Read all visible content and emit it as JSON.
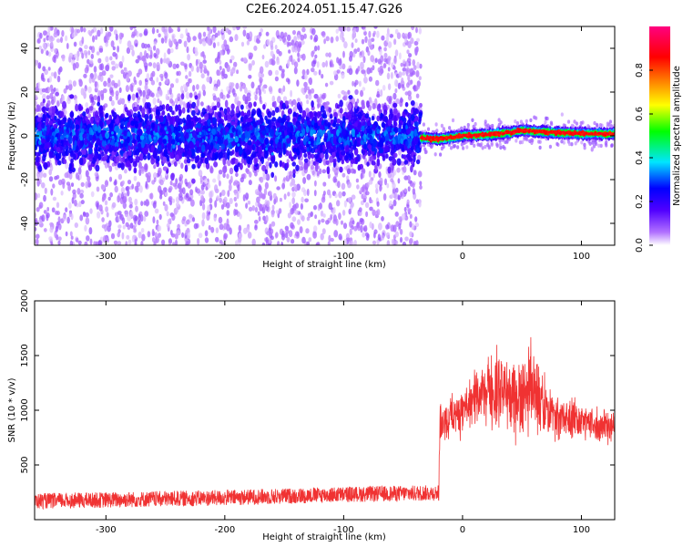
{
  "title": "C2E6.2024.051.15.47.G26",
  "chart_data": [
    {
      "type": "heatmap",
      "xlabel": "Height of straight line (km)",
      "ylabel": "Frequency (Hz)",
      "xlim": [
        -360,
        128
      ],
      "ylim": [
        -50,
        50
      ],
      "xticks": [
        -300,
        -200,
        -100,
        0,
        100
      ],
      "yticks": [
        -40,
        -20,
        0,
        20,
        40
      ],
      "colorbar": {
        "label": "Normalized spectral amplitude",
        "range": [
          0.0,
          1.0
        ],
        "ticks": [
          0.0,
          0.2,
          0.4,
          0.6,
          0.8
        ],
        "tick_labels": [
          "0.0",
          "0.2",
          "0.4",
          "0.6",
          "0.8"
        ],
        "colormap": [
          "#ffffff",
          "#7a00ff",
          "#0000ff",
          "#00e5ff",
          "#00ff00",
          "#ffff00",
          "#ff8000",
          "#ff0000",
          "#ff0080"
        ]
      },
      "regions": [
        {
          "x_range": [
            -360,
            -35
          ],
          "description_level": "broad noise",
          "core_band_hz": [
            -10,
            10
          ],
          "spread_hz": [
            -50,
            50
          ],
          "max_amplitude": 0.35
        },
        {
          "x_range": [
            -35,
            128
          ],
          "description_level": "signal line",
          "band_hz": [
            -3,
            3
          ],
          "max_amplitude": 0.95
        }
      ],
      "signal_track": {
        "x": [
          -35,
          -20,
          0,
          20,
          40,
          50,
          60,
          80,
          100,
          128
        ],
        "frequency": [
          -1,
          -1.5,
          0,
          0.5,
          1.5,
          2.5,
          2,
          1.5,
          1,
          1
        ]
      }
    },
    {
      "type": "line",
      "xlabel": "Height of straight line (km)",
      "ylabel": "SNR (10 * v/v)",
      "xlim": [
        -360,
        128
      ],
      "ylim": [
        0,
        2000
      ],
      "xticks": [
        -300,
        -200,
        -100,
        0,
        100
      ],
      "yticks": [
        500,
        1000,
        1500,
        2000
      ],
      "color": "#f03232",
      "series": [
        {
          "x": [
            -360,
            -300,
            -250,
            -200,
            -150,
            -100,
            -50,
            -20,
            -19,
            0,
            20,
            30,
            40,
            50,
            60,
            70,
            80,
            100,
            128
          ],
          "y": [
            170,
            180,
            190,
            200,
            215,
            230,
            240,
            245,
            900,
            1000,
            1150,
            1200,
            1100,
            1150,
            1200,
            1000,
            950,
            900,
            850
          ],
          "spread": [
            120,
            120,
            120,
            120,
            120,
            120,
            120,
            120,
            300,
            350,
            500,
            550,
            500,
            500,
            600,
            400,
            300,
            250,
            250
          ]
        }
      ]
    }
  ]
}
